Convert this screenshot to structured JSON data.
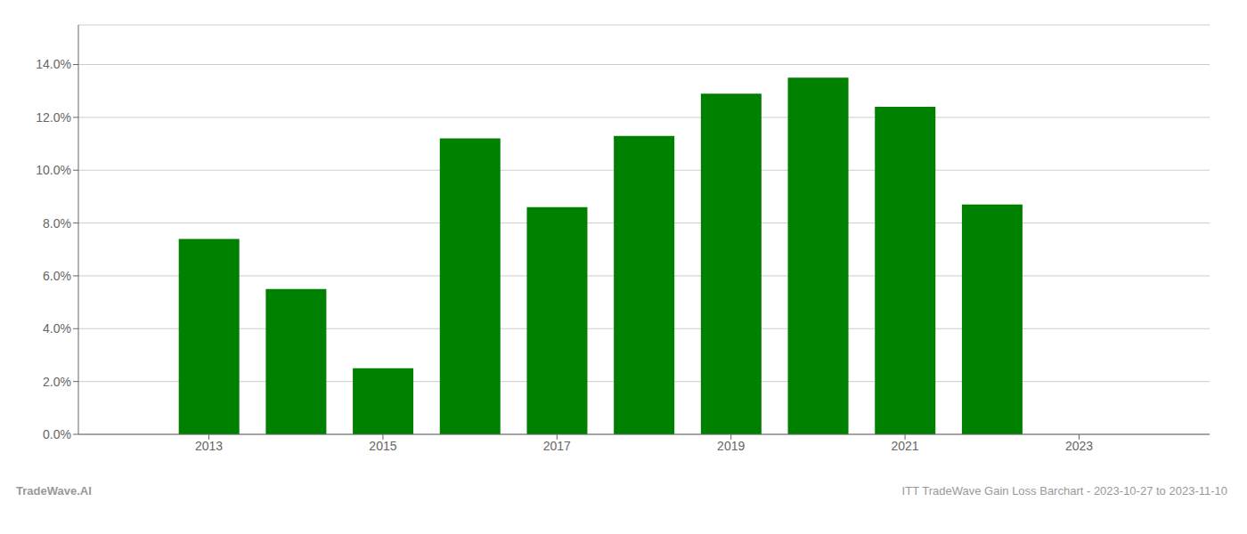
{
  "chart_data": {
    "type": "bar",
    "x": [
      2013,
      2014,
      2015,
      2016,
      2017,
      2018,
      2019,
      2020,
      2021,
      2022
    ],
    "values": [
      0.074,
      0.055,
      0.025,
      0.112,
      0.086,
      0.113,
      0.129,
      0.135,
      0.124,
      0.087
    ],
    "color": "#008000",
    "xlim": [
      2011.5,
      2024.5
    ],
    "xticks": [
      2013,
      2015,
      2017,
      2019,
      2021,
      2023
    ],
    "ylim": [
      0,
      0.155
    ],
    "yticks": [
      {
        "value": 0.0,
        "label": "0.0%"
      },
      {
        "value": 0.02,
        "label": "2.0%"
      },
      {
        "value": 0.04,
        "label": "4.0%"
      },
      {
        "value": 0.06,
        "label": "6.0%"
      },
      {
        "value": 0.08,
        "label": "8.0%"
      },
      {
        "value": 0.1,
        "label": "10.0%"
      },
      {
        "value": 0.12,
        "label": "12.0%"
      },
      {
        "value": 0.14,
        "label": "14.0%"
      }
    ],
    "grid": true,
    "annotations": [
      "TradeWave.AI",
      "ITT TradeWave Gain Loss Barchart - 2023-10-27 to 2023-11-10"
    ]
  }
}
